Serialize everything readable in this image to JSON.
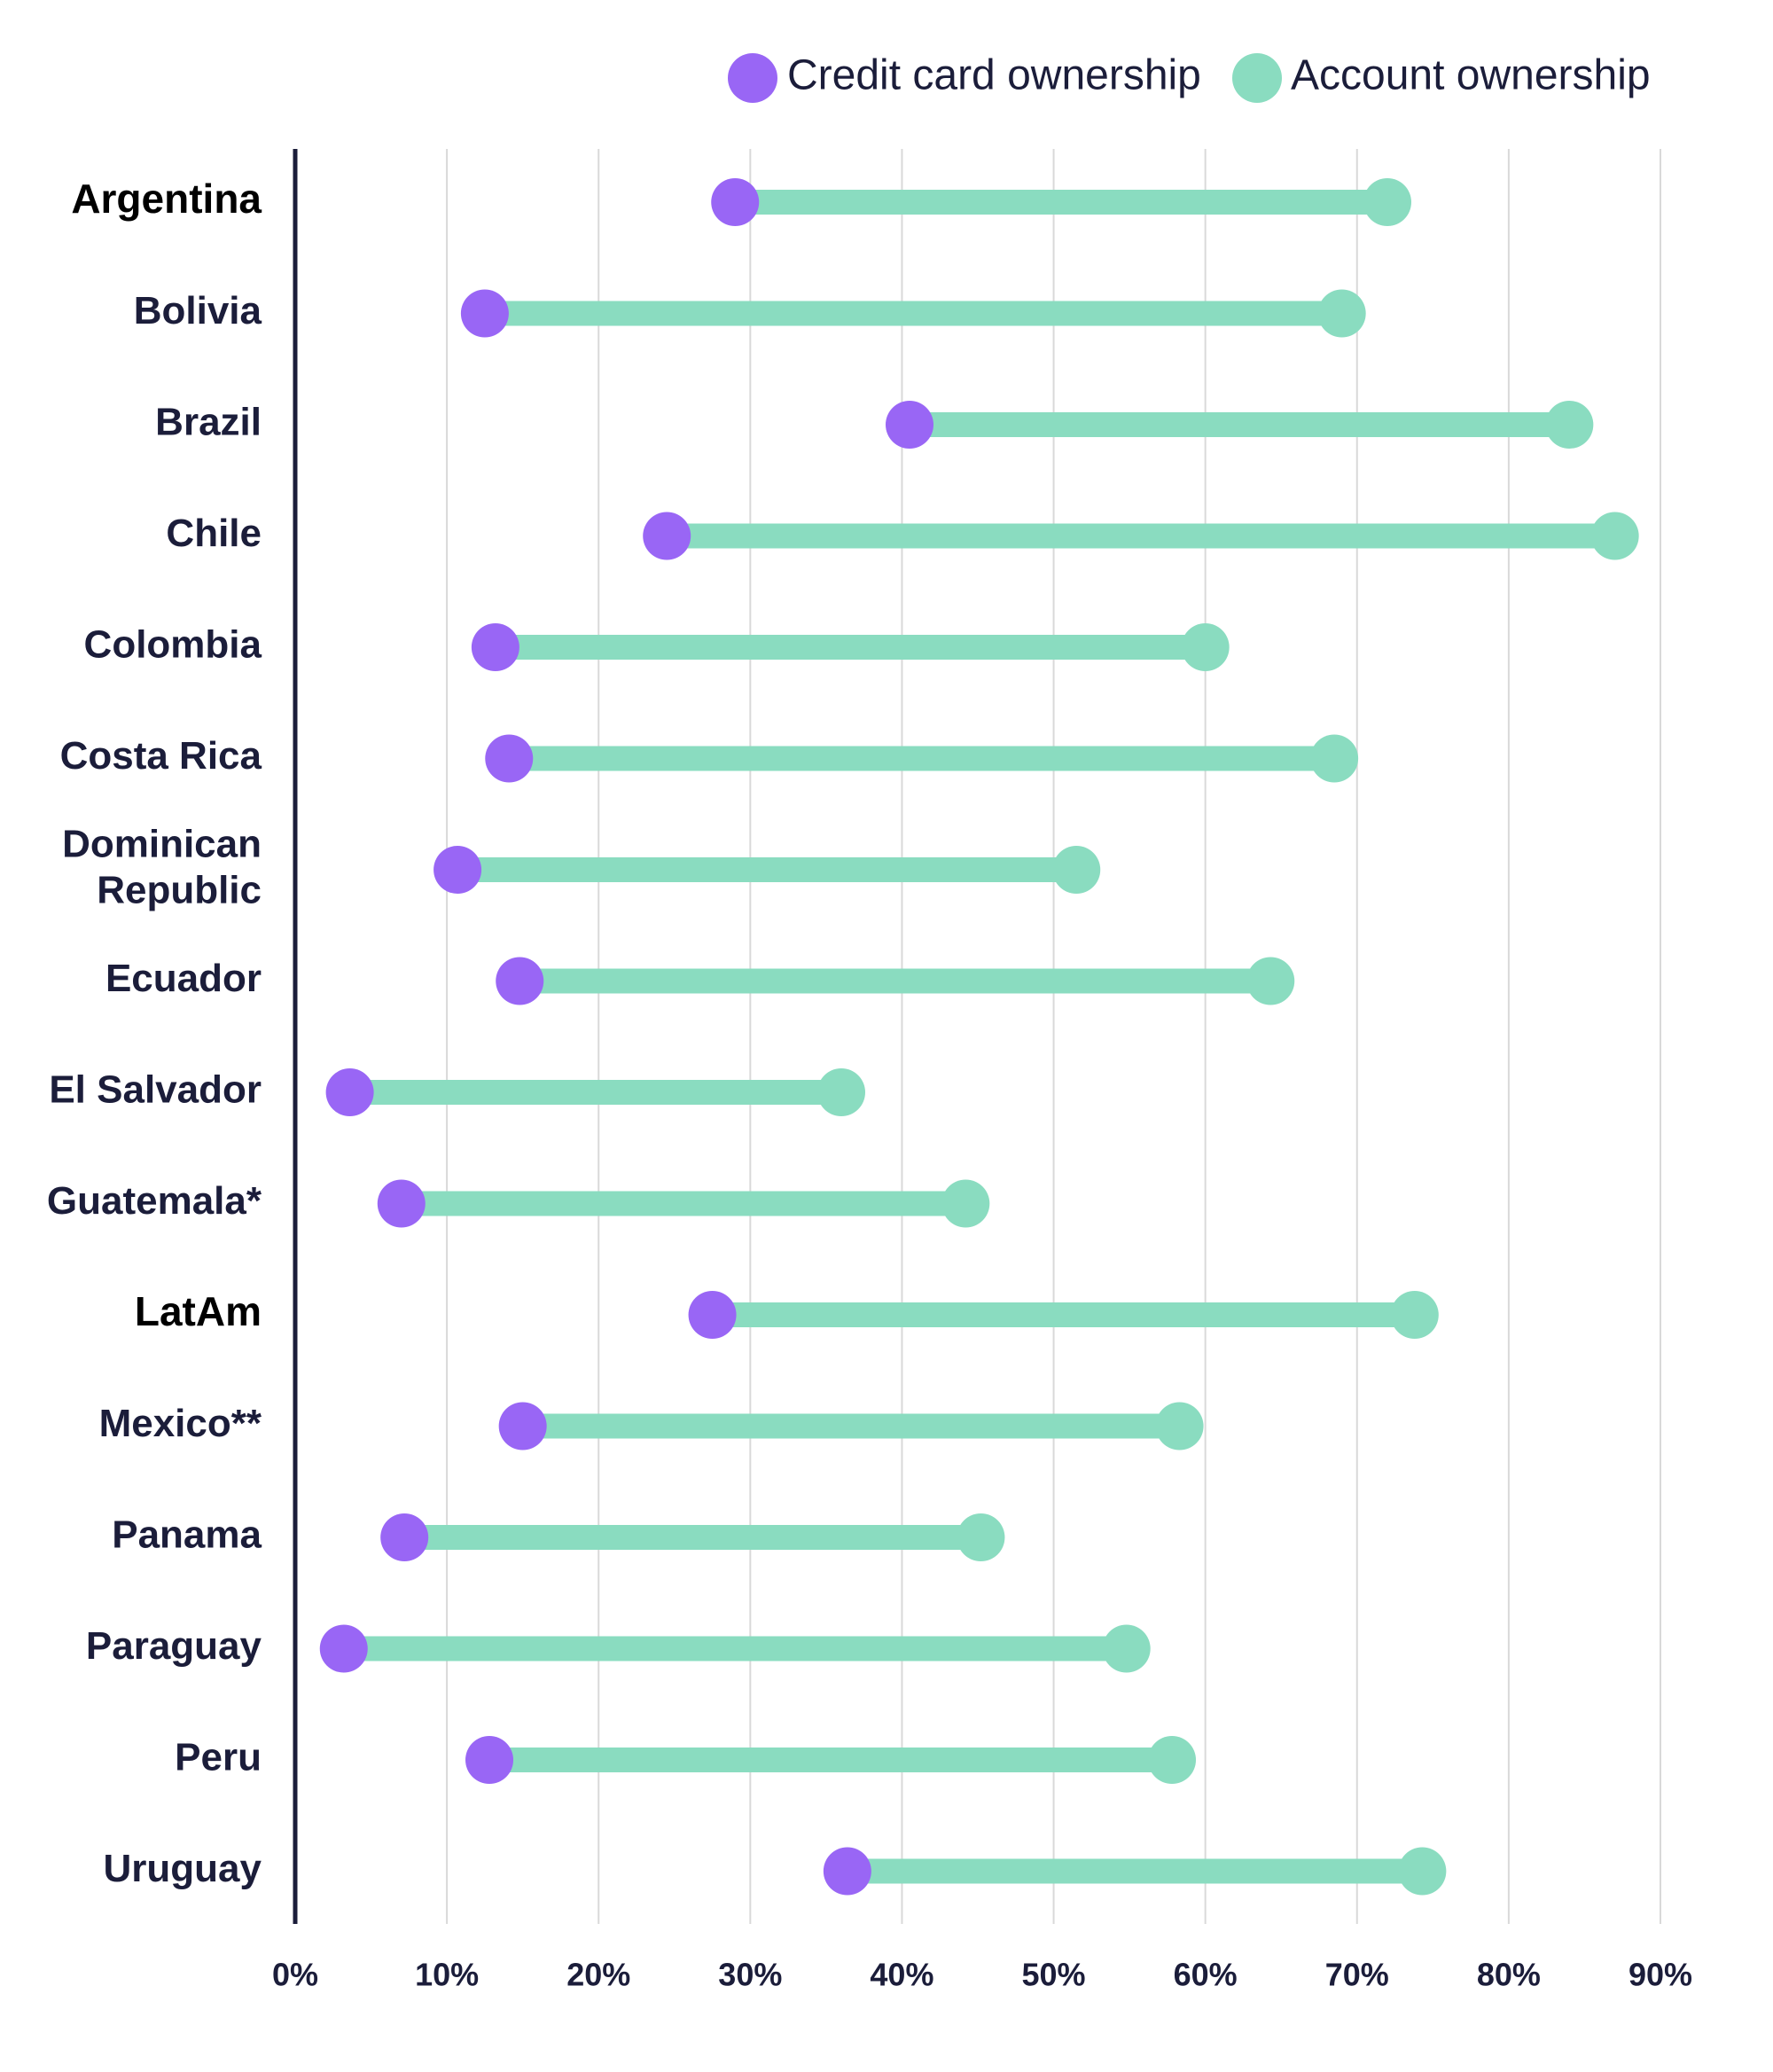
{
  "chart_data": {
    "type": "dumbbell",
    "title": "",
    "xlabel": "",
    "ylabel": "",
    "xlim": [
      0,
      90
    ],
    "x_ticks": [
      "0%",
      "10%",
      "20%",
      "30%",
      "40%",
      "50%",
      "60%",
      "70%",
      "80%",
      "90%"
    ],
    "grid": "vertical",
    "legend_position": "top-right",
    "colors": {
      "credit": "#9966f5",
      "account": "#8adcc0",
      "axis": "#1b1d3a",
      "grid": "#d9d9d9"
    },
    "series": [
      {
        "name": "Credit card ownership",
        "key": "credit"
      },
      {
        "name": "Account ownership",
        "key": "account"
      }
    ],
    "categories": [
      {
        "lines": [
          "Argentina"
        ],
        "credit": 29,
        "account": 72
      },
      {
        "lines": [
          "Bolivia"
        ],
        "credit": 12.5,
        "account": 69
      },
      {
        "lines": [
          "Brazil"
        ],
        "credit": 40.5,
        "account": 84
      },
      {
        "lines": [
          "Chile"
        ],
        "credit": 24.5,
        "account": 87
      },
      {
        "lines": [
          "Colombia"
        ],
        "credit": 13.2,
        "account": 60
      },
      {
        "lines": [
          "Costa Rica"
        ],
        "credit": 14.1,
        "account": 68.5
      },
      {
        "lines": [
          "Dominican",
          "Republic"
        ],
        "credit": 10.7,
        "account": 51.5
      },
      {
        "lines": [
          "Ecuador"
        ],
        "credit": 14.8,
        "account": 64.3
      },
      {
        "lines": [
          "El Salvador"
        ],
        "credit": 3.6,
        "account": 36
      },
      {
        "lines": [
          "Guatemala*"
        ],
        "credit": 7,
        "account": 44.2
      },
      {
        "lines": [
          "LatAm"
        ],
        "credit": 27.5,
        "account": 73.8
      },
      {
        "lines": [
          "Mexico**"
        ],
        "credit": 15,
        "account": 58.3
      },
      {
        "lines": [
          "Panama"
        ],
        "credit": 7.2,
        "account": 45.2
      },
      {
        "lines": [
          "Paraguay"
        ],
        "credit": 3.2,
        "account": 54.8
      },
      {
        "lines": [
          "Peru"
        ],
        "credit": 12.8,
        "account": 57.8
      },
      {
        "lines": [
          "Uruguay"
        ],
        "credit": 36.4,
        "account": 74.3
      }
    ]
  }
}
